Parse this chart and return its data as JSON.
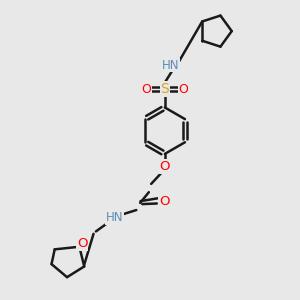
{
  "background_color": "#e8e8e8",
  "bond_color": "#1a1a1a",
  "N_color": "#5B8DB8",
  "O_color": "#FF0000",
  "S_color": "#DAA520",
  "figsize": [
    3.0,
    3.0
  ],
  "dpi": 100,
  "xlim": [
    0,
    10
  ],
  "ylim": [
    0,
    10
  ]
}
